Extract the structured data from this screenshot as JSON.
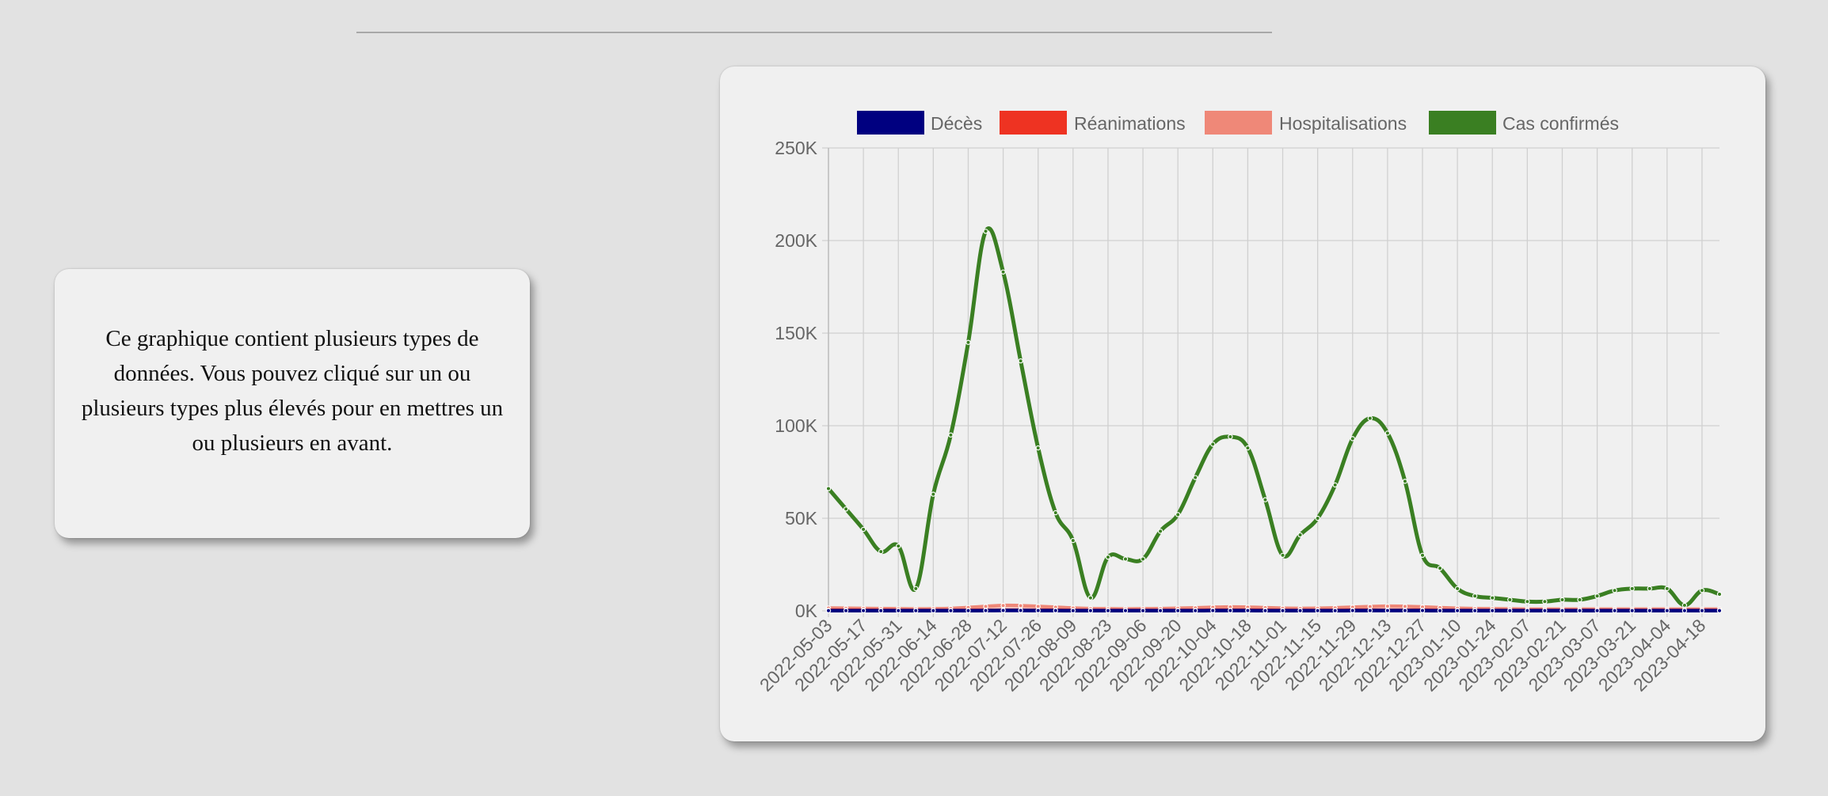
{
  "info": {
    "text": "Ce graphique contient plusieurs types de données. Vous pouvez cliqué sur un ou plusieurs types plus élevés pour en mettres un ou plusieurs en avant."
  },
  "chart_data": {
    "type": "line",
    "title": "",
    "xlabel": "",
    "ylabel": "",
    "ylim": [
      0,
      250000
    ],
    "yticks": [
      "0K",
      "50K",
      "100K",
      "150K",
      "200K",
      "250K"
    ],
    "ytick_values": [
      0,
      50000,
      100000,
      150000,
      200000,
      250000
    ],
    "grid": true,
    "legend_position": "top",
    "x": [
      "2022-05-03",
      "2022-05-10",
      "2022-05-17",
      "2022-05-24",
      "2022-05-31",
      "2022-06-07",
      "2022-06-14",
      "2022-06-21",
      "2022-06-28",
      "2022-07-05",
      "2022-07-12",
      "2022-07-19",
      "2022-07-26",
      "2022-08-02",
      "2022-08-09",
      "2022-08-16",
      "2022-08-23",
      "2022-08-30",
      "2022-09-06",
      "2022-09-13",
      "2022-09-20",
      "2022-09-27",
      "2022-10-04",
      "2022-10-11",
      "2022-10-18",
      "2022-10-25",
      "2022-11-01",
      "2022-11-08",
      "2022-11-15",
      "2022-11-22",
      "2022-11-29",
      "2022-12-06",
      "2022-12-13",
      "2022-12-20",
      "2022-12-27",
      "2023-01-03",
      "2023-01-10",
      "2023-01-17",
      "2023-01-24",
      "2023-01-31",
      "2023-02-07",
      "2023-02-14",
      "2023-02-21",
      "2023-02-28",
      "2023-03-07",
      "2023-03-14",
      "2023-03-21",
      "2023-03-28",
      "2023-04-04",
      "2023-04-11",
      "2023-04-18",
      "2023-04-25"
    ],
    "x_tick_labels": [
      "2022-05-03",
      "2022-05-17",
      "2022-05-31",
      "2022-06-14",
      "2022-06-28",
      "2022-07-12",
      "2022-07-26",
      "2022-08-09",
      "2022-08-23",
      "2022-09-06",
      "2022-09-20",
      "2022-10-04",
      "2022-10-18",
      "2022-11-01",
      "2022-11-15",
      "2022-11-29",
      "2022-12-13",
      "2022-12-27",
      "2023-01-10",
      "2023-01-24",
      "2023-02-07",
      "2023-02-21",
      "2023-03-07",
      "2023-03-21",
      "2023-04-04",
      "2023-04-18"
    ],
    "series": [
      {
        "name": "Décès",
        "color": "#000080",
        "values": [
          100,
          100,
          100,
          100,
          100,
          100,
          100,
          100,
          100,
          150,
          200,
          200,
          150,
          150,
          100,
          100,
          100,
          100,
          100,
          100,
          100,
          100,
          150,
          150,
          150,
          100,
          100,
          100,
          100,
          100,
          150,
          150,
          150,
          150,
          150,
          100,
          100,
          100,
          100,
          100,
          100,
          100,
          100,
          100,
          100,
          100,
          100,
          100,
          100,
          100,
          100,
          100
        ]
      },
      {
        "name": "Réanimations",
        "color": "#ee3322",
        "values": [
          300,
          300,
          300,
          300,
          200,
          200,
          200,
          200,
          200,
          300,
          400,
          400,
          300,
          300,
          200,
          200,
          200,
          200,
          200,
          200,
          200,
          200,
          300,
          300,
          300,
          300,
          200,
          200,
          200,
          200,
          300,
          300,
          300,
          300,
          300,
          200,
          200,
          200,
          200,
          200,
          200,
          200,
          200,
          200,
          200,
          200,
          200,
          200,
          200,
          200,
          200,
          200
        ]
      },
      {
        "name": "Hospitalisations",
        "color": "#ef8878",
        "values": [
          1500,
          1400,
          1300,
          1200,
          1100,
          1000,
          1100,
          1300,
          1800,
          2400,
          2900,
          2800,
          2400,
          2000,
          1500,
          1200,
          1100,
          1000,
          1100,
          1200,
          1400,
          1600,
          1900,
          2100,
          2000,
          1700,
          1400,
          1300,
          1400,
          1600,
          2000,
          2300,
          2500,
          2400,
          2100,
          1700,
          1400,
          1200,
          1100,
          1000,
          900,
          900,
          900,
          900,
          900,
          900,
          900,
          900,
          900,
          900,
          900,
          900
        ]
      },
      {
        "name": "Cas confirmés",
        "color": "#3a7f22",
        "values": [
          66000,
          55000,
          44000,
          32000,
          35000,
          12000,
          63000,
          95000,
          145000,
          205000,
          183000,
          135000,
          88000,
          53000,
          38000,
          7000,
          29000,
          28000,
          28000,
          43000,
          52000,
          72000,
          90000,
          94000,
          88000,
          60000,
          30000,
          41000,
          50000,
          68000,
          93000,
          104000,
          96000,
          70000,
          30000,
          23000,
          12000,
          8000,
          7000,
          6000,
          5000,
          5000,
          6000,
          6000,
          8000,
          11000,
          12000,
          12000,
          12000,
          3000,
          11000,
          9000
        ]
      }
    ]
  }
}
